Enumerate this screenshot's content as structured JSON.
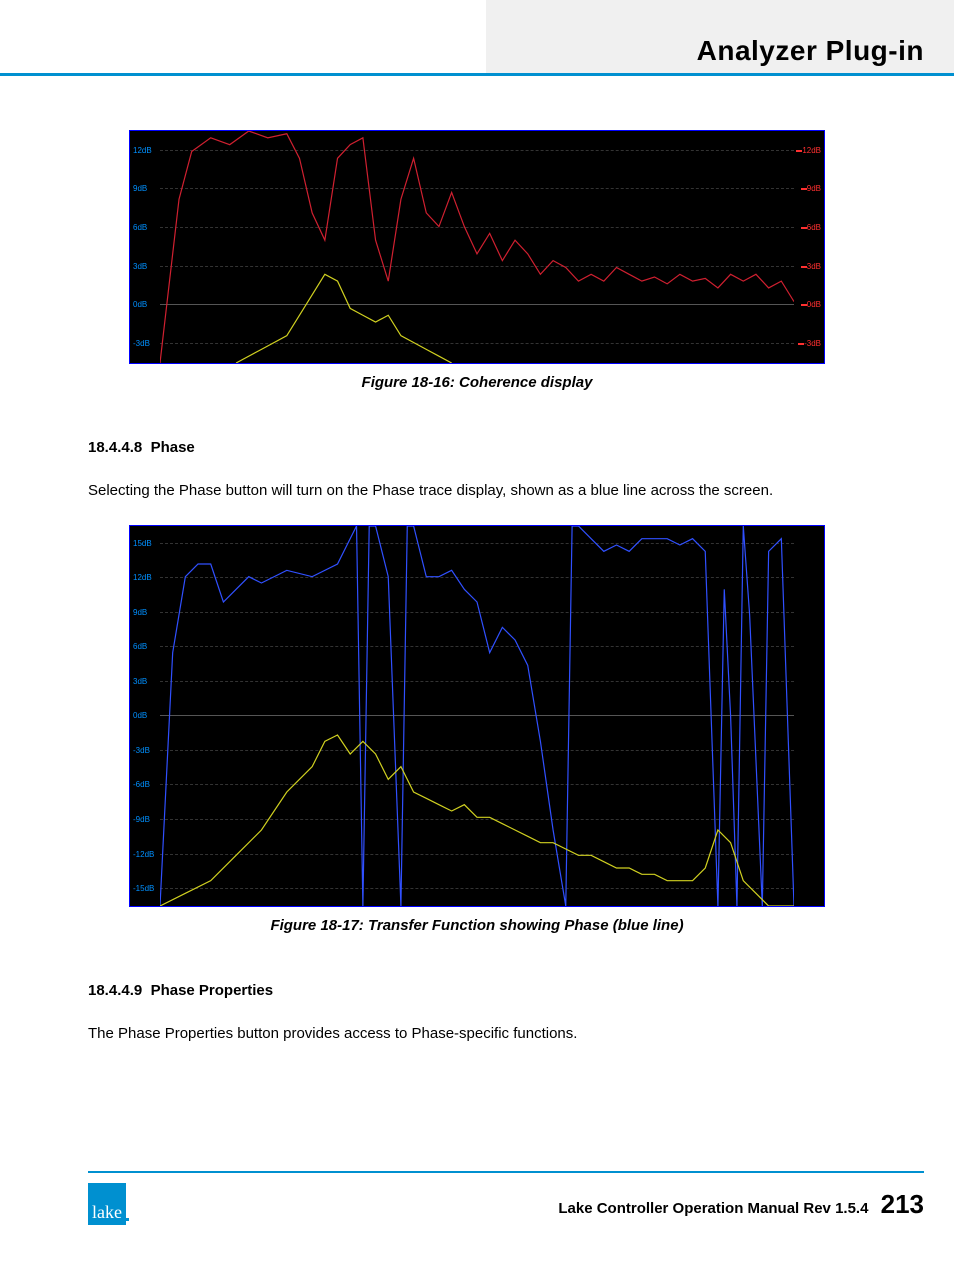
{
  "header": {
    "title": "Analyzer Plug-in"
  },
  "chart1": {
    "type": "line",
    "background_color": "#000000",
    "border_color": "#0000ff",
    "grid_color": "#333333",
    "ylabels_left_color": "#0090ff",
    "ylabels_right_color": "#ff3030",
    "ylabels": [
      "12dB",
      "9dB",
      "6dB",
      "3dB",
      "0dB",
      "-3dB"
    ],
    "ylim": [
      -4,
      13
    ],
    "series": [
      {
        "name": "coherence",
        "color": "#d02030",
        "width": 1.2,
        "points": [
          [
            0,
            -4
          ],
          [
            3,
            8
          ],
          [
            5,
            11.5
          ],
          [
            8,
            12.5
          ],
          [
            11,
            12
          ],
          [
            14,
            13
          ],
          [
            17,
            12.5
          ],
          [
            20,
            12.8
          ],
          [
            22,
            11
          ],
          [
            24,
            7
          ],
          [
            26,
            5
          ],
          [
            28,
            11
          ],
          [
            30,
            12
          ],
          [
            32,
            12.5
          ],
          [
            34,
            5
          ],
          [
            36,
            2
          ],
          [
            38,
            8
          ],
          [
            40,
            11
          ],
          [
            42,
            7
          ],
          [
            44,
            6
          ],
          [
            46,
            8.5
          ],
          [
            48,
            6
          ],
          [
            50,
            4
          ],
          [
            52,
            5.5
          ],
          [
            54,
            3.5
          ],
          [
            56,
            5
          ],
          [
            58,
            4
          ],
          [
            60,
            2.5
          ],
          [
            62,
            3.5
          ],
          [
            64,
            3
          ],
          [
            66,
            2
          ],
          [
            68,
            2.5
          ],
          [
            70,
            2
          ],
          [
            72,
            3
          ],
          [
            74,
            2.5
          ],
          [
            76,
            2
          ],
          [
            78,
            2.3
          ],
          [
            80,
            1.8
          ],
          [
            82,
            2.5
          ],
          [
            84,
            2
          ],
          [
            86,
            2.2
          ],
          [
            88,
            1.5
          ],
          [
            90,
            2.5
          ],
          [
            92,
            2
          ],
          [
            94,
            2.5
          ],
          [
            96,
            1.5
          ],
          [
            98,
            2
          ],
          [
            100,
            0.5
          ]
        ]
      },
      {
        "name": "magnitude",
        "color": "#d0d020",
        "width": 1.2,
        "points": [
          [
            12,
            -4
          ],
          [
            16,
            -3
          ],
          [
            20,
            -2
          ],
          [
            24,
            1
          ],
          [
            26,
            2.5
          ],
          [
            28,
            2
          ],
          [
            30,
            0
          ],
          [
            32,
            -0.5
          ],
          [
            34,
            -1
          ],
          [
            36,
            -0.5
          ],
          [
            38,
            -2
          ],
          [
            40,
            -2.5
          ],
          [
            42,
            -3
          ],
          [
            44,
            -3.5
          ],
          [
            46,
            -4
          ]
        ]
      }
    ],
    "caption": "Figure 18-16: Coherence display"
  },
  "section1": {
    "number": "18.4.4.8",
    "title": "Phase",
    "body": "Selecting the Phase button will turn on the Phase trace display, shown as a blue line across the screen."
  },
  "chart2": {
    "type": "line",
    "background_color": "#000000",
    "border_color": "#0000ff",
    "grid_color": "#333333",
    "ylabels_left_color": "#0090ff",
    "ylabels": [
      "15dB",
      "12dB",
      "9dB",
      "6dB",
      "3dB",
      "0dB",
      "-3dB",
      "-6dB",
      "-9dB",
      "-12dB",
      "-15dB"
    ],
    "ylim": [
      -15,
      15
    ],
    "series": [
      {
        "name": "phase",
        "color": "#3050ff",
        "width": 1.2,
        "points": [
          [
            0,
            -15
          ],
          [
            2,
            5
          ],
          [
            4,
            11
          ],
          [
            6,
            12
          ],
          [
            8,
            12
          ],
          [
            10,
            9
          ],
          [
            12,
            10
          ],
          [
            14,
            11
          ],
          [
            16,
            10.5
          ],
          [
            20,
            11.5
          ],
          [
            24,
            11
          ],
          [
            28,
            12
          ],
          [
            30,
            14
          ],
          [
            31,
            15
          ],
          [
            32,
            -15
          ],
          [
            33,
            15
          ],
          [
            34,
            15
          ],
          [
            36,
            11
          ],
          [
            38,
            -15
          ],
          [
            39,
            15
          ],
          [
            40,
            15
          ],
          [
            42,
            11
          ],
          [
            44,
            11
          ],
          [
            46,
            11.5
          ],
          [
            48,
            10
          ],
          [
            50,
            9
          ],
          [
            52,
            5
          ],
          [
            54,
            7
          ],
          [
            56,
            6
          ],
          [
            58,
            4
          ],
          [
            60,
            -2
          ],
          [
            62,
            -9
          ],
          [
            64,
            -15
          ],
          [
            65,
            15
          ],
          [
            66,
            15
          ],
          [
            68,
            14
          ],
          [
            70,
            13
          ],
          [
            72,
            13.5
          ],
          [
            74,
            13
          ],
          [
            76,
            14
          ],
          [
            78,
            14
          ],
          [
            80,
            14
          ],
          [
            82,
            13.5
          ],
          [
            84,
            14
          ],
          [
            86,
            13
          ],
          [
            88,
            -15
          ],
          [
            89,
            10
          ],
          [
            90,
            0
          ],
          [
            91,
            -15
          ],
          [
            92,
            15
          ],
          [
            93,
            8
          ],
          [
            95,
            -15
          ],
          [
            96,
            13
          ],
          [
            98,
            14
          ],
          [
            100,
            -15
          ]
        ]
      },
      {
        "name": "magnitude",
        "color": "#d0d020",
        "width": 1.2,
        "points": [
          [
            0,
            -15
          ],
          [
            4,
            -14
          ],
          [
            8,
            -13
          ],
          [
            12,
            -11
          ],
          [
            16,
            -9
          ],
          [
            20,
            -6
          ],
          [
            24,
            -4
          ],
          [
            26,
            -2
          ],
          [
            28,
            -1.5
          ],
          [
            30,
            -3
          ],
          [
            32,
            -2
          ],
          [
            34,
            -3
          ],
          [
            36,
            -5
          ],
          [
            38,
            -4
          ],
          [
            40,
            -6
          ],
          [
            42,
            -6.5
          ],
          [
            44,
            -7
          ],
          [
            46,
            -7.5
          ],
          [
            48,
            -7
          ],
          [
            50,
            -8
          ],
          [
            52,
            -8
          ],
          [
            54,
            -8.5
          ],
          [
            56,
            -9
          ],
          [
            58,
            -9.5
          ],
          [
            60,
            -10
          ],
          [
            62,
            -10
          ],
          [
            64,
            -10.5
          ],
          [
            66,
            -11
          ],
          [
            68,
            -11
          ],
          [
            70,
            -11.5
          ],
          [
            72,
            -12
          ],
          [
            74,
            -12
          ],
          [
            76,
            -12.5
          ],
          [
            78,
            -12.5
          ],
          [
            80,
            -13
          ],
          [
            82,
            -13
          ],
          [
            84,
            -13
          ],
          [
            86,
            -12
          ],
          [
            88,
            -9
          ],
          [
            90,
            -10
          ],
          [
            92,
            -13
          ],
          [
            94,
            -14
          ],
          [
            96,
            -15
          ],
          [
            100,
            -15
          ]
        ]
      }
    ],
    "caption": "Figure 18-17: Transfer Function showing Phase (blue line)"
  },
  "section2": {
    "number": "18.4.4.9",
    "title": "Phase Properties",
    "body": "The Phase Properties button provides access to Phase-specific functions."
  },
  "footer": {
    "logo_text": "lake",
    "text": "Lake Controller Operation Manual Rev 1.5.4",
    "page": "213"
  }
}
